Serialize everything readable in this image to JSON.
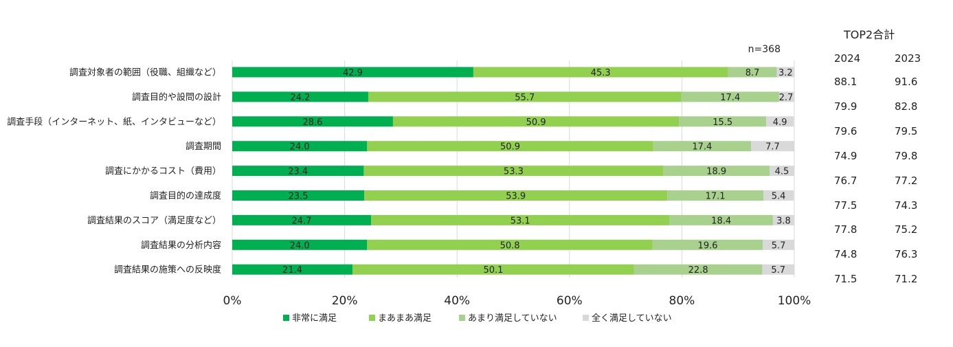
{
  "chart_data": {
    "type": "bar",
    "orientation": "horizontal",
    "stacked": true,
    "percent": true,
    "sample_size_label": "n=368",
    "categories": [
      "調査対象者の範囲（役職、組織など）",
      "調査目的や設問の設計",
      "調査手段（インターネット、紙、インタビューなど）",
      "調査期間",
      "調査にかかるコスト（費用）",
      "調査目的の達成度",
      "調査結果のスコア（満足度など）",
      "調査結果の分析内容",
      "調査結果の施策への反映度"
    ],
    "series": [
      {
        "name": "非常に満足",
        "color": "#00b050",
        "values": [
          42.9,
          24.2,
          28.6,
          24.0,
          23.4,
          23.5,
          24.7,
          24.0,
          21.4
        ],
        "labels": [
          "42.9",
          "24.2",
          "28.6",
          "24.0",
          "23.4",
          "23.5",
          "24.7",
          "24.0",
          "21.4"
        ]
      },
      {
        "name": "まあまあ満足",
        "color": "#92d050",
        "values": [
          45.3,
          55.7,
          50.9,
          50.9,
          53.3,
          53.9,
          53.1,
          50.8,
          50.1
        ],
        "labels": [
          "45.3",
          "55.7",
          "50.9",
          "50.9",
          "53.3",
          "53.9",
          "53.1",
          "50.8",
          "50.1"
        ]
      },
      {
        "name": "あまり満足していない",
        "color": "#a9d18e",
        "values": [
          8.7,
          17.4,
          15.5,
          17.4,
          18.9,
          17.1,
          18.4,
          19.6,
          22.8
        ],
        "labels": [
          "8.7",
          "17.4",
          "15.5",
          "17.4",
          "18.9",
          "17.1",
          "18.4",
          "19.6",
          "22.8"
        ]
      },
      {
        "name": "全く満足していない",
        "color": "#d9d9d9",
        "values": [
          3.2,
          2.7,
          4.9,
          7.7,
          4.5,
          5.4,
          3.8,
          5.7,
          5.7
        ],
        "labels": [
          "3.2",
          "2.7",
          "4.9",
          "7.7",
          "4.5",
          "5.4",
          "3.8",
          "5.7",
          "5.7"
        ]
      }
    ],
    "xlim": [
      0,
      100
    ],
    "xticks": [
      "0%",
      "20%",
      "40%",
      "60%",
      "80%",
      "100%"
    ],
    "grid": true,
    "legend": "bottom"
  },
  "top2": {
    "title": "TOP2合計",
    "years": [
      "2024",
      "2023"
    ],
    "values_2024": [
      "88.1",
      "79.9",
      "79.6",
      "74.9",
      "76.7",
      "77.5",
      "77.8",
      "74.8",
      "71.5"
    ],
    "values_2023": [
      "91.6",
      "82.8",
      "79.5",
      "79.8",
      "77.2",
      "74.3",
      "75.2",
      "76.3",
      "71.2"
    ]
  }
}
